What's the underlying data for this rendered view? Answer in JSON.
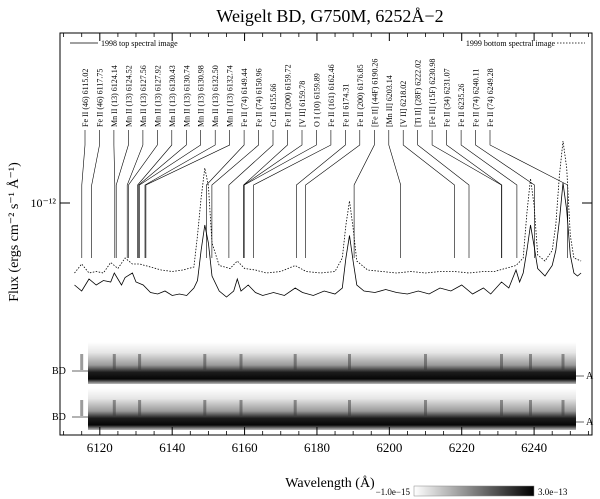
{
  "chart_data": {
    "type": "line",
    "title": "Weigelt BD, G750M, 6252Å−2",
    "xlabel": "Wavelength (Å)",
    "ylabel": "Flux (ergs cm⁻² s⁻¹ Å⁻¹)",
    "y_tick_label": "10⁻¹²",
    "x_ticks": [
      6120,
      6140,
      6160,
      6180,
      6200,
      6220,
      6240
    ],
    "xlim": [
      6109,
      6256
    ],
    "legend": [
      {
        "label": "1998 top spectral image",
        "style": "solid",
        "position": "top-left"
      },
      {
        "label": "1999 bottom spectral image",
        "style": "dotted",
        "position": "top-right"
      }
    ],
    "series": [
      {
        "name": "1998 top spectral image",
        "style": "solid",
        "points": [
          [
            6113,
            0.22
          ],
          [
            6115,
            0.18
          ],
          [
            6117,
            0.26
          ],
          [
            6119,
            0.22
          ],
          [
            6121,
            0.25
          ],
          [
            6123,
            0.24
          ],
          [
            6124,
            0.3
          ],
          [
            6126,
            0.22
          ],
          [
            6127,
            0.27
          ],
          [
            6129,
            0.3
          ],
          [
            6130,
            0.24
          ],
          [
            6132,
            0.22
          ],
          [
            6134,
            0.17
          ],
          [
            6136,
            0.16
          ],
          [
            6138,
            0.18
          ],
          [
            6140,
            0.15
          ],
          [
            6142,
            0.16
          ],
          [
            6144,
            0.15
          ],
          [
            6146,
            0.2
          ],
          [
            6147,
            0.25
          ],
          [
            6148,
            0.45
          ],
          [
            6149,
            0.62
          ],
          [
            6150,
            0.5
          ],
          [
            6151,
            0.28
          ],
          [
            6153,
            0.18
          ],
          [
            6155,
            0.14
          ],
          [
            6157,
            0.18
          ],
          [
            6158,
            0.26
          ],
          [
            6159,
            0.18
          ],
          [
            6161,
            0.22
          ],
          [
            6163,
            0.17
          ],
          [
            6165,
            0.15
          ],
          [
            6168,
            0.17
          ],
          [
            6171,
            0.15
          ],
          [
            6174,
            0.2
          ],
          [
            6176,
            0.17
          ],
          [
            6179,
            0.15
          ],
          [
            6182,
            0.18
          ],
          [
            6185,
            0.16
          ],
          [
            6187,
            0.2
          ],
          [
            6188,
            0.4
          ],
          [
            6189,
            0.55
          ],
          [
            6190,
            0.38
          ],
          [
            6191,
            0.22
          ],
          [
            6193,
            0.18
          ],
          [
            6196,
            0.17
          ],
          [
            6199,
            0.19
          ],
          [
            6202,
            0.17
          ],
          [
            6205,
            0.16
          ],
          [
            6208,
            0.18
          ],
          [
            6211,
            0.16
          ],
          [
            6214,
            0.2
          ],
          [
            6217,
            0.18
          ],
          [
            6220,
            0.22
          ],
          [
            6223,
            0.16
          ],
          [
            6226,
            0.2
          ],
          [
            6228,
            0.16
          ],
          [
            6231,
            0.24
          ],
          [
            6233,
            0.2
          ],
          [
            6235,
            0.32
          ],
          [
            6236,
            0.24
          ],
          [
            6237,
            0.3
          ],
          [
            6238,
            0.45
          ],
          [
            6239,
            0.62
          ],
          [
            6240,
            0.48
          ],
          [
            6241,
            0.33
          ],
          [
            6243,
            0.28
          ],
          [
            6245,
            0.35
          ],
          [
            6246,
            0.45
          ],
          [
            6247,
            0.65
          ],
          [
            6248,
            0.9
          ],
          [
            6249,
            0.72
          ],
          [
            6250,
            0.42
          ],
          [
            6251,
            0.3
          ],
          [
            6252,
            0.28
          ],
          [
            6253,
            0.3
          ]
        ]
      },
      {
        "name": "1999 bottom spectral image",
        "style": "dotted",
        "points": [
          [
            6113,
            0.3
          ],
          [
            6115,
            0.36
          ],
          [
            6117,
            0.3
          ],
          [
            6119,
            0.31
          ],
          [
            6121,
            0.3
          ],
          [
            6123,
            0.37
          ],
          [
            6125,
            0.33
          ],
          [
            6127,
            0.4
          ],
          [
            6129,
            0.36
          ],
          [
            6131,
            0.36
          ],
          [
            6134,
            0.34
          ],
          [
            6137,
            0.32
          ],
          [
            6140,
            0.31
          ],
          [
            6143,
            0.32
          ],
          [
            6146,
            0.34
          ],
          [
            6147,
            0.55
          ],
          [
            6148,
            0.8
          ],
          [
            6149,
            1.0
          ],
          [
            6150,
            0.88
          ],
          [
            6151,
            0.5
          ],
          [
            6153,
            0.35
          ],
          [
            6156,
            0.33
          ],
          [
            6158,
            0.38
          ],
          [
            6160,
            0.33
          ],
          [
            6163,
            0.32
          ],
          [
            6166,
            0.3
          ],
          [
            6170,
            0.31
          ],
          [
            6174,
            0.35
          ],
          [
            6177,
            0.31
          ],
          [
            6181,
            0.3
          ],
          [
            6185,
            0.31
          ],
          [
            6187,
            0.4
          ],
          [
            6188,
            0.62
          ],
          [
            6189,
            0.78
          ],
          [
            6190,
            0.6
          ],
          [
            6191,
            0.38
          ],
          [
            6194,
            0.32
          ],
          [
            6198,
            0.31
          ],
          [
            6202,
            0.3
          ],
          [
            6206,
            0.31
          ],
          [
            6210,
            0.3
          ],
          [
            6214,
            0.31
          ],
          [
            6218,
            0.31
          ],
          [
            6222,
            0.3
          ],
          [
            6226,
            0.31
          ],
          [
            6229,
            0.31
          ],
          [
            6232,
            0.33
          ],
          [
            6235,
            0.35
          ],
          [
            6237,
            0.4
          ],
          [
            6238,
            0.7
          ],
          [
            6239,
            0.93
          ],
          [
            6240,
            0.75
          ],
          [
            6241,
            0.42
          ],
          [
            6243,
            0.38
          ],
          [
            6245,
            0.45
          ],
          [
            6246,
            0.62
          ],
          [
            6247,
            0.95
          ],
          [
            6248,
            1.18
          ],
          [
            6249,
            1.0
          ],
          [
            6250,
            0.55
          ],
          [
            6251,
            0.4
          ],
          [
            6253,
            0.38
          ]
        ]
      }
    ],
    "line_ids": [
      {
        "label": "Fe II  (46) 6115.02",
        "wavelength": 6115.02
      },
      {
        "label": "Fe II  (46) 6117.75",
        "wavelength": 6117.75
      },
      {
        "label": "Mn II (13) 6124.14",
        "wavelength": 6124.14
      },
      {
        "label": "Mn II (13) 6124.52",
        "wavelength": 6124.52
      },
      {
        "label": "Mn II (13) 6127.56",
        "wavelength": 6127.56
      },
      {
        "label": "Mn II (13) 6127.92",
        "wavelength": 6127.92
      },
      {
        "label": "Mn II (13) 6130.43",
        "wavelength": 6130.43
      },
      {
        "label": "Mn II (13) 6130.74",
        "wavelength": 6130.74
      },
      {
        "label": "Mn II (13) 6130.98",
        "wavelength": 6130.98
      },
      {
        "label": "Mn II (13) 6132.50",
        "wavelength": 6132.5
      },
      {
        "label": "Mn II (13) 6132.74",
        "wavelength": 6132.74
      },
      {
        "label": "Fe II  (74) 6149.44",
        "wavelength": 6149.44
      },
      {
        "label": "Fe II  (74) 6150.96",
        "wavelength": 6150.96
      },
      {
        "label": "Cr II 6155.66",
        "wavelength": 6155.66
      },
      {
        "label": "Fe II  (200) 6159.72",
        "wavelength": 6159.72
      },
      {
        "label": "[V II] 6159.78",
        "wavelength": 6159.78
      },
      {
        "label": "O I (10) 6159.89",
        "wavelength": 6159.89
      },
      {
        "label": "Fe II  (161) 6162.46",
        "wavelength": 6162.46
      },
      {
        "label": "Fe II 6174.31",
        "wavelength": 6174.31
      },
      {
        "label": "Fe II  (200) 6176.85",
        "wavelength": 6176.85
      },
      {
        "label": "[Fe II] (44F) 6190.26",
        "wavelength": 6190.26
      },
      {
        "label": "[Mn II] 6203.14",
        "wavelength": 6203.14
      },
      {
        "label": "[V II] 6218.02",
        "wavelength": 6218.02
      },
      {
        "label": "[Ti II] (28F) 6222.02",
        "wavelength": 6222.02
      },
      {
        "label": "[Fe II] (15F) 6230.98",
        "wavelength": 6230.98
      },
      {
        "label": "Fe II  (34) 6231.07",
        "wavelength": 6231.07
      },
      {
        "label": "Fe II 6235.26",
        "wavelength": 6235.26
      },
      {
        "label": "Fe II  (74) 6240.11",
        "wavelength": 6240.11
      },
      {
        "label": "Fe II  (74) 6249.28",
        "wavelength": 6249.28
      }
    ],
    "spectral_images": [
      {
        "left_label": "BD",
        "right_label": "A"
      },
      {
        "left_label": "BD",
        "right_label": "A"
      }
    ],
    "emission_columns": [
      6115,
      6124,
      6131,
      6149,
      6159,
      6174,
      6189,
      6210,
      6231,
      6239,
      6248
    ],
    "colorbar": {
      "min_label": "−1.0e−15",
      "max_label": "3.0e−13"
    }
  }
}
